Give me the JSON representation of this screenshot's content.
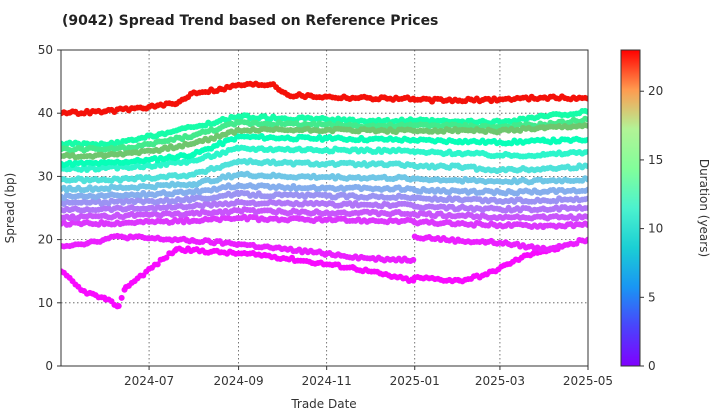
{
  "chart_data": {
    "type": "scatter",
    "title": "(9042)   Spread Trend based on Reference Prices",
    "xlabel": "Trade Date",
    "ylabel": "Spread (bp)",
    "colorbar_label": "Duration (years)",
    "x_range": [
      "2024-05-01",
      "2025-05-01"
    ],
    "x_ticks": [
      "2024-07",
      "2024-09",
      "2024-11",
      "2025-01",
      "2025-03",
      "2025-05"
    ],
    "ylim": [
      0,
      50
    ],
    "y_ticks": [
      0,
      10,
      20,
      30,
      40,
      50
    ],
    "colorbar_range": [
      0,
      23
    ],
    "colorbar_ticks": [
      0,
      5,
      10,
      15,
      20
    ],
    "grid": true,
    "colormap": "rainbow",
    "series": [
      {
        "duration": 22.5,
        "points": [
          [
            "2024-05-01",
            40
          ],
          [
            "2024-06-01",
            40.3
          ],
          [
            "2024-07-01",
            41
          ],
          [
            "2024-07-20",
            41.5
          ],
          [
            "2024-08-01",
            43.3
          ],
          [
            "2024-08-20",
            43.8
          ],
          [
            "2024-09-01",
            44.5
          ],
          [
            "2024-09-25",
            44.6
          ],
          [
            "2024-10-05",
            42.9
          ],
          [
            "2024-11-01",
            42.6
          ],
          [
            "2024-12-01",
            42.4
          ],
          [
            "2024-12-31",
            42.3
          ],
          [
            "2025-01-01",
            42.1
          ],
          [
            "2025-02-01",
            42
          ],
          [
            "2025-03-01",
            42.2
          ],
          [
            "2025-04-01",
            42.5
          ],
          [
            "2025-05-01",
            42.3
          ]
        ]
      },
      {
        "duration": 16.5,
        "points": [
          [
            "2024-05-01",
            33.2
          ],
          [
            "2024-06-01",
            33.3
          ],
          [
            "2024-06-20",
            33.8
          ],
          [
            "2024-07-10",
            34.3
          ],
          [
            "2024-08-01",
            35.2
          ],
          [
            "2024-09-01",
            37.3
          ],
          [
            "2024-10-01",
            37.4
          ],
          [
            "2024-11-01",
            37.4
          ],
          [
            "2024-12-01",
            37.3
          ],
          [
            "2024-12-31",
            37.2
          ],
          [
            "2025-01-01",
            37.2
          ],
          [
            "2025-02-01",
            37.3
          ],
          [
            "2025-03-01",
            37.2
          ],
          [
            "2025-04-01",
            37.6
          ],
          [
            "2025-05-01",
            38
          ]
        ]
      },
      {
        "duration": 14.5,
        "points": [
          [
            "2024-05-01",
            34.3
          ],
          [
            "2024-06-01",
            34.3
          ],
          [
            "2024-06-20",
            34.5
          ],
          [
            "2024-07-10",
            35.5
          ],
          [
            "2024-08-01",
            36.5
          ],
          [
            "2024-09-01",
            38.5
          ],
          [
            "2024-10-01",
            38.3
          ],
          [
            "2024-11-01",
            38.2
          ],
          [
            "2024-12-01",
            38
          ],
          [
            "2024-12-31",
            38
          ],
          [
            "2025-01-01",
            38.1
          ],
          [
            "2025-02-01",
            38
          ],
          [
            "2025-03-01",
            37.8
          ],
          [
            "2025-04-01",
            38.2
          ],
          [
            "2025-05-01",
            39
          ]
        ]
      },
      {
        "duration": 12.5,
        "points": [
          [
            "2024-05-01",
            35.2
          ],
          [
            "2024-06-01",
            35
          ],
          [
            "2024-06-20",
            35.7
          ],
          [
            "2024-07-10",
            36.8
          ],
          [
            "2024-08-01",
            37.8
          ],
          [
            "2024-09-01",
            39.5
          ],
          [
            "2024-10-01",
            39.2
          ],
          [
            "2024-11-01",
            39
          ],
          [
            "2024-12-01",
            38.8
          ],
          [
            "2024-12-31",
            38.8
          ],
          [
            "2025-01-01",
            38.8
          ],
          [
            "2025-02-01",
            38.6
          ],
          [
            "2025-03-01",
            38.6
          ],
          [
            "2025-04-01",
            39.5
          ],
          [
            "2025-05-01",
            40.2
          ]
        ]
      },
      {
        "duration": 11.2,
        "points": [
          [
            "2024-05-01",
            32
          ],
          [
            "2024-06-01",
            32.1
          ],
          [
            "2024-07-01",
            32.6
          ],
          [
            "2024-08-01",
            33.5
          ],
          [
            "2024-09-01",
            36.3
          ],
          [
            "2024-10-01",
            36.1
          ],
          [
            "2024-11-01",
            36
          ],
          [
            "2024-12-01",
            35.9
          ],
          [
            "2024-12-31",
            35.8
          ],
          [
            "2025-01-01",
            35.7
          ],
          [
            "2025-02-01",
            35.6
          ],
          [
            "2025-03-01",
            35.4
          ],
          [
            "2025-04-01",
            35.6
          ],
          [
            "2025-05-01",
            35.8
          ]
        ]
      },
      {
        "duration": 9.5,
        "points": [
          [
            "2024-05-01",
            31.2
          ],
          [
            "2024-06-01",
            31.3
          ],
          [
            "2024-07-01",
            31.7
          ],
          [
            "2024-08-01",
            32.5
          ],
          [
            "2024-09-01",
            34.4
          ],
          [
            "2024-10-01",
            34.3
          ],
          [
            "2024-11-01",
            34.2
          ],
          [
            "2024-12-01",
            34.1
          ],
          [
            "2024-12-31",
            34
          ],
          [
            "2025-01-01",
            33.8
          ],
          [
            "2025-02-01",
            33.7
          ],
          [
            "2025-03-01",
            33.3
          ],
          [
            "2025-04-01",
            33.4
          ],
          [
            "2025-05-01",
            33.9
          ]
        ]
      },
      {
        "duration": 8,
        "points": [
          [
            "2024-05-01",
            29.5
          ],
          [
            "2024-06-01",
            29.4
          ],
          [
            "2024-07-01",
            29.8
          ],
          [
            "2024-08-01",
            30.3
          ],
          [
            "2024-09-01",
            32.4
          ],
          [
            "2024-10-01",
            32.1
          ],
          [
            "2024-11-01",
            32
          ],
          [
            "2024-12-01",
            31.9
          ],
          [
            "2024-12-31",
            31.8
          ],
          [
            "2025-01-01",
            31.6
          ],
          [
            "2025-02-01",
            31.5
          ],
          [
            "2025-03-01",
            31
          ],
          [
            "2025-04-01",
            31.2
          ],
          [
            "2025-05-01",
            31.6
          ]
        ]
      },
      {
        "duration": 6.5,
        "points": [
          [
            "2024-05-01",
            28
          ],
          [
            "2024-06-01",
            28.1
          ],
          [
            "2024-07-01",
            28.4
          ],
          [
            "2024-08-01",
            28.8
          ],
          [
            "2024-09-01",
            30.3
          ],
          [
            "2024-10-01",
            30
          ],
          [
            "2024-11-01",
            29.9
          ],
          [
            "2024-12-01",
            29.8
          ],
          [
            "2024-12-31",
            29.7
          ],
          [
            "2025-01-01",
            29.6
          ],
          [
            "2025-02-01",
            29.4
          ],
          [
            "2025-03-01",
            29.2
          ],
          [
            "2025-04-01",
            29.3
          ],
          [
            "2025-05-01",
            29.5
          ]
        ]
      },
      {
        "duration": 5.5,
        "points": [
          [
            "2024-05-01",
            26.8
          ],
          [
            "2024-06-01",
            26.9
          ],
          [
            "2024-07-01",
            27.2
          ],
          [
            "2024-08-01",
            27.5
          ],
          [
            "2024-09-01",
            28.6
          ],
          [
            "2024-10-01",
            28.3
          ],
          [
            "2024-11-01",
            28.2
          ],
          [
            "2024-12-01",
            28.1
          ],
          [
            "2024-12-31",
            28
          ],
          [
            "2025-01-01",
            27.8
          ],
          [
            "2025-02-01",
            27.6
          ],
          [
            "2025-03-01",
            27.5
          ],
          [
            "2025-04-01",
            27.6
          ],
          [
            "2025-05-01",
            27.9
          ]
        ]
      },
      {
        "duration": 4.5,
        "points": [
          [
            "2024-05-01",
            25.8
          ],
          [
            "2024-06-01",
            25.9
          ],
          [
            "2024-07-01",
            26.1
          ],
          [
            "2024-08-01",
            26.4
          ],
          [
            "2024-09-01",
            27.2
          ],
          [
            "2024-10-01",
            27
          ],
          [
            "2024-11-01",
            26.9
          ],
          [
            "2024-12-01",
            26.8
          ],
          [
            "2024-12-31",
            26.7
          ],
          [
            "2025-01-01",
            26.5
          ],
          [
            "2025-02-01",
            26.3
          ],
          [
            "2025-03-01",
            26.1
          ],
          [
            "2025-04-01",
            26.2
          ],
          [
            "2025-05-01",
            26.5
          ]
        ]
      },
      {
        "duration": 3.5,
        "points": [
          [
            "2024-05-01",
            24.7
          ],
          [
            "2024-06-01",
            24.9
          ],
          [
            "2024-07-01",
            25
          ],
          [
            "2024-08-01",
            25.3
          ],
          [
            "2024-09-01",
            25.9
          ],
          [
            "2024-10-01",
            25.7
          ],
          [
            "2024-11-01",
            25.6
          ],
          [
            "2024-12-01",
            25.5
          ],
          [
            "2024-12-31",
            25.4
          ],
          [
            "2025-01-01",
            25.2
          ],
          [
            "2025-02-01",
            25
          ],
          [
            "2025-03-01",
            24.8
          ],
          [
            "2025-04-01",
            24.8
          ],
          [
            "2025-05-01",
            25
          ]
        ]
      },
      {
        "duration": 2.5,
        "points": [
          [
            "2024-05-01",
            23.5
          ],
          [
            "2024-06-01",
            23.7
          ],
          [
            "2024-07-01",
            23.9
          ],
          [
            "2024-08-01",
            24.1
          ],
          [
            "2024-09-01",
            24.6
          ],
          [
            "2024-10-01",
            24.4
          ],
          [
            "2024-11-01",
            24.3
          ],
          [
            "2024-12-01",
            24.2
          ],
          [
            "2024-12-31",
            24.1
          ],
          [
            "2025-01-01",
            24
          ],
          [
            "2025-02-01",
            23.8
          ],
          [
            "2025-03-01",
            23.6
          ],
          [
            "2025-04-01",
            23.5
          ],
          [
            "2025-05-01",
            23.6
          ]
        ]
      },
      {
        "duration": 1.6,
        "points": [
          [
            "2024-05-01",
            22.5
          ],
          [
            "2024-06-01",
            22.6
          ],
          [
            "2024-07-01",
            22.8
          ],
          [
            "2024-08-01",
            23
          ],
          [
            "2024-09-01",
            23.4
          ],
          [
            "2024-10-01",
            23.2
          ],
          [
            "2024-11-01",
            23.1
          ],
          [
            "2024-12-01",
            23
          ],
          [
            "2024-12-31",
            22.9
          ],
          [
            "2025-01-01",
            22.7
          ],
          [
            "2025-02-01",
            22.5
          ],
          [
            "2025-03-01",
            22.3
          ],
          [
            "2025-04-01",
            22.2
          ],
          [
            "2025-05-01",
            22.3
          ]
        ]
      },
      {
        "duration": 0.9,
        "points": [
          [
            "2024-05-01",
            19
          ],
          [
            "2024-05-20",
            19.5
          ],
          [
            "2024-06-10",
            20.5
          ],
          [
            "2024-07-01",
            20.2
          ],
          [
            "2024-08-01",
            19.8
          ],
          [
            "2024-09-01",
            19.3
          ],
          [
            "2024-10-01",
            18.5
          ],
          [
            "2024-11-01",
            17.8
          ],
          [
            "2024-12-01",
            17
          ],
          [
            "2024-12-31",
            16.8
          ],
          [
            "2025-01-01",
            20.5
          ],
          [
            "2025-02-01",
            19.8
          ],
          [
            "2025-03-01",
            19.5
          ],
          [
            "2025-04-01",
            18.5
          ],
          [
            "2025-05-01",
            20
          ]
        ]
      },
      {
        "duration": 0.3,
        "points": [
          [
            "2024-05-01",
            15
          ],
          [
            "2024-05-15",
            12
          ],
          [
            "2024-06-01",
            10.5
          ],
          [
            "2024-06-10",
            9.5
          ],
          [
            "2024-06-15",
            12.5
          ],
          [
            "2024-07-20",
            18.5
          ],
          [
            "2024-08-20",
            18
          ],
          [
            "2024-09-20",
            17.5
          ],
          [
            "2024-10-20",
            16.5
          ],
          [
            "2024-11-20",
            15.5
          ],
          [
            "2024-12-20",
            14
          ],
          [
            "2024-12-31",
            13.5
          ],
          [
            "2025-01-01",
            14
          ],
          [
            "2025-02-01",
            13.5
          ],
          [
            "2025-02-20",
            14.5
          ],
          [
            "2025-03-10",
            16.5
          ],
          [
            "2025-03-25",
            18
          ],
          [
            "2025-04-10",
            18.5
          ]
        ]
      }
    ]
  }
}
